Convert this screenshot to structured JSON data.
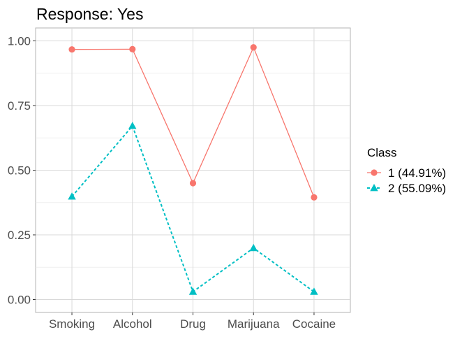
{
  "chart_data": {
    "type": "line",
    "title": "Response: Yes",
    "categories": [
      "Smoking",
      "Alcohol",
      "Drug",
      "Marijuana",
      "Cocaine"
    ],
    "ylim": [
      -0.05,
      1.05
    ],
    "yticks": [
      0.0,
      0.25,
      0.5,
      0.75,
      1.0
    ],
    "ytick_labels": [
      "0.00",
      "0.25",
      "0.50",
      "0.75",
      "1.00"
    ],
    "grid": true,
    "legend_title": "Class",
    "legend_position": "right",
    "series": [
      {
        "name": "1 (44.91%)",
        "values": [
          0.967,
          0.968,
          0.45,
          0.975,
          0.395
        ],
        "color": "#F8766D",
        "marker": "circle",
        "line": "solid"
      },
      {
        "name": "2 (55.09%)",
        "values": [
          0.398,
          0.671,
          0.03,
          0.199,
          0.03
        ],
        "color": "#00BFC4",
        "marker": "triangle",
        "line": "dashed"
      }
    ]
  }
}
